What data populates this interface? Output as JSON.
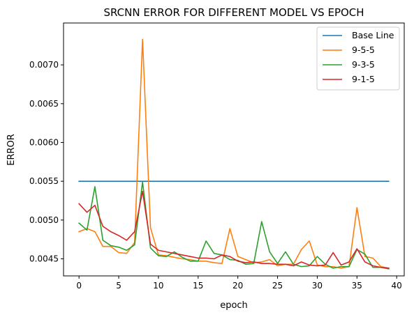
{
  "chart_data": {
    "type": "line",
    "title": "SRCNN ERROR FOR DIFFERENT MODEL VS EPOCH",
    "xlabel": "epoch",
    "ylabel": "ERROR",
    "xlim": [
      -1.95,
      40.95
    ],
    "ylim": [
      0.00428,
      0.00754
    ],
    "xticks": [
      0,
      5,
      10,
      15,
      20,
      25,
      30,
      35,
      40
    ],
    "yticks": [
      0.0045,
      0.005,
      0.0055,
      0.006,
      0.0065,
      0.007
    ],
    "ytick_labels": [
      "0.0045",
      "0.0050",
      "0.0055",
      "0.0060",
      "0.0065",
      "0.0070"
    ],
    "grid": false,
    "legend_position": "top-right",
    "series": [
      {
        "name": "Base Line",
        "color": "#1f77b4",
        "values": [
          0.0055,
          0.0055,
          0.0055,
          0.0055,
          0.0055,
          0.0055,
          0.0055,
          0.0055,
          0.0055,
          0.0055,
          0.0055,
          0.0055,
          0.0055,
          0.0055,
          0.0055,
          0.0055,
          0.0055,
          0.0055,
          0.0055,
          0.0055,
          0.0055,
          0.0055,
          0.0055,
          0.0055,
          0.0055,
          0.0055,
          0.0055,
          0.0055,
          0.0055,
          0.0055,
          0.0055,
          0.0055,
          0.0055,
          0.0055,
          0.0055,
          0.0055,
          0.0055,
          0.0055,
          0.0055,
          0.0055
        ]
      },
      {
        "name": "9-5-5",
        "color": "#ff7f0e",
        "values": [
          0.00485,
          0.00489,
          0.00485,
          0.00466,
          0.00466,
          0.00458,
          0.00457,
          0.00471,
          0.00733,
          0.0049,
          0.00455,
          0.00454,
          0.00452,
          0.0045,
          0.00449,
          0.00447,
          0.00447,
          0.00445,
          0.00444,
          0.00489,
          0.00453,
          0.00449,
          0.00445,
          0.00446,
          0.00449,
          0.00441,
          0.00443,
          0.00443,
          0.00462,
          0.00473,
          0.00442,
          0.0044,
          0.0044,
          0.00438,
          0.0044,
          0.00516,
          0.00453,
          0.00451,
          0.0044,
          0.00438
        ]
      },
      {
        "name": "9-3-5",
        "color": "#2ca02c",
        "values": [
          0.00496,
          0.00487,
          0.00543,
          0.00474,
          0.00467,
          0.00465,
          0.00461,
          0.00468,
          0.00549,
          0.00464,
          0.00454,
          0.00453,
          0.00459,
          0.00452,
          0.00447,
          0.00447,
          0.00473,
          0.00457,
          0.00455,
          0.00449,
          0.00448,
          0.00443,
          0.00444,
          0.00498,
          0.00459,
          0.00444,
          0.00459,
          0.00443,
          0.0044,
          0.00441,
          0.00453,
          0.00443,
          0.00438,
          0.0044,
          0.0044,
          0.00462,
          0.00456,
          0.00439,
          0.00439,
          0.00437
        ]
      },
      {
        "name": "9-1-5",
        "color": "#d62728",
        "values": [
          0.00521,
          0.0051,
          0.00519,
          0.00492,
          0.00485,
          0.0048,
          0.00474,
          0.00485,
          0.00537,
          0.00469,
          0.00461,
          0.00459,
          0.00457,
          0.00455,
          0.00453,
          0.00451,
          0.00451,
          0.0045,
          0.00455,
          0.00453,
          0.00447,
          0.00445,
          0.00446,
          0.00444,
          0.00444,
          0.00443,
          0.00443,
          0.00441,
          0.00446,
          0.00442,
          0.00441,
          0.00442,
          0.00458,
          0.00442,
          0.00446,
          0.00463,
          0.00446,
          0.00441,
          0.00439,
          0.00438
        ]
      }
    ]
  }
}
